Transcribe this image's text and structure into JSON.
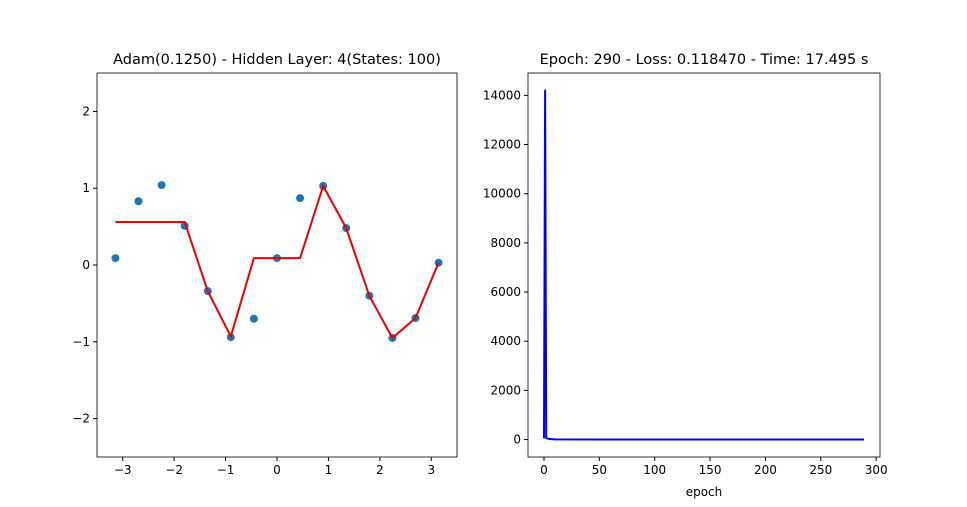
{
  "chart_data": [
    {
      "type": "line",
      "title": "Adam(0.1250) - Hidden Layer: 4(States: 100)",
      "xlim": [
        -3.5,
        3.5
      ],
      "ylim": [
        -2.5,
        2.5
      ],
      "xticks": [
        {
          "value": -3,
          "label": "−3"
        },
        {
          "value": -2,
          "label": "−2"
        },
        {
          "value": -1,
          "label": "−1"
        },
        0,
        1,
        2,
        3
      ],
      "yticks": [
        {
          "value": -2,
          "label": "−2"
        },
        {
          "value": -1,
          "label": "−1"
        },
        0,
        1,
        2
      ],
      "series": [
        {
          "type": "scatter",
          "color": "#1f77b4",
          "x": [
            -3.1416,
            -2.693,
            -2.244,
            -1.795,
            -1.346,
            -0.898,
            -0.449,
            0,
            0.449,
            0.898,
            1.346,
            1.795,
            2.244,
            2.693,
            3.1416
          ],
          "values": [
            0.09,
            0.83,
            1.04,
            0.51,
            -0.34,
            -0.94,
            -0.7,
            0.09,
            0.87,
            1.03,
            0.48,
            -0.4,
            -0.95,
            -0.69,
            0.03
          ]
        },
        {
          "type": "line",
          "color": "#ee0000",
          "x": [
            -3.1416,
            -1.795,
            -1.346,
            -0.898,
            -0.449,
            0.449,
            0.898,
            1.346,
            1.795,
            2.244,
            2.693,
            3.1416
          ],
          "values": [
            0.56,
            0.56,
            -0.34,
            -0.93,
            0.09,
            0.09,
            1.03,
            0.48,
            -0.4,
            -0.95,
            -0.69,
            0.03
          ]
        }
      ]
    },
    {
      "type": "line",
      "title": "Epoch:  290 - Loss: 0.118470 - Time: 17.495 s",
      "xlabel": "epoch",
      "xlim": [
        -14.45,
        303.45
      ],
      "ylim": [
        -710,
        14910
      ],
      "xticks": [
        0,
        50,
        100,
        150,
        200,
        250,
        300
      ],
      "yticks": [
        0,
        2000,
        4000,
        6000,
        8000,
        10000,
        12000,
        14000
      ],
      "series": [
        {
          "type": "line",
          "color": "#0000ff",
          "x": [
            0,
            1,
            2,
            5,
            10,
            50,
            100,
            150,
            200,
            250,
            289
          ],
          "values": [
            50,
            14200,
            60,
            20,
            5,
            1,
            0.5,
            0.3,
            0.2,
            0.15,
            0.11847
          ]
        }
      ]
    }
  ]
}
